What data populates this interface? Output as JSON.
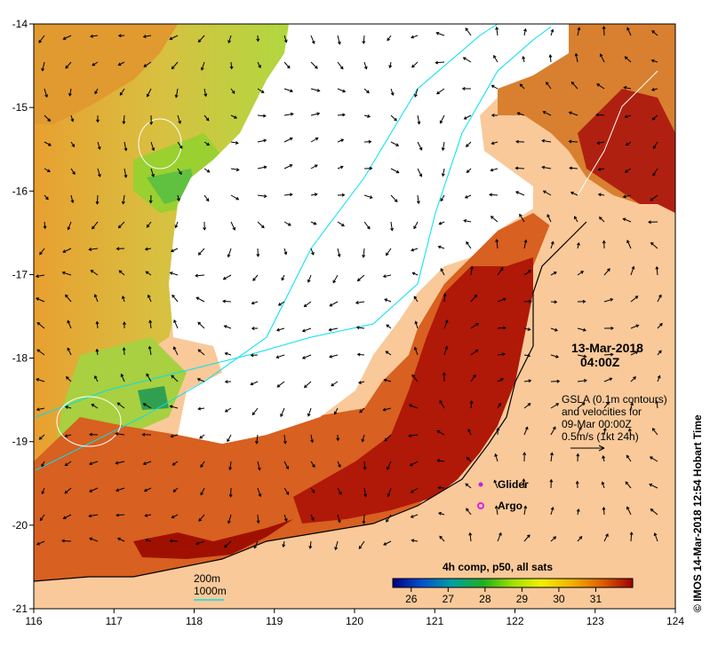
{
  "map": {
    "lon_range": [
      116,
      124
    ],
    "lat_range": [
      -21,
      -14
    ],
    "x_ticks": [
      "116",
      "117",
      "118",
      "119",
      "120",
      "121",
      "122",
      "123",
      "124"
    ],
    "y_ticks": [
      "-14",
      "-15",
      "-16",
      "-17",
      "-18",
      "-19",
      "-20",
      "-21"
    ],
    "colors": {
      "land": "#f9c99a",
      "no_data": "#ffffff",
      "contour_isobath": "#00e0f0",
      "gsla_contour": "#ffffff"
    }
  },
  "timestamp": {
    "date": "13-Mar-2018",
    "time": "04:00Z"
  },
  "info": {
    "line1": "GSLA (0.1m contours)",
    "line2": "and velocities for",
    "line3": "09-Mar 00:00Z",
    "line4": "0.5m/s (1kt 24h)"
  },
  "legend": {
    "glider": "Glider",
    "argo": "Argo",
    "glider_color": "#c020e0",
    "argo_color": "#e020e0"
  },
  "depth_legend": {
    "d200": "200m",
    "d1000": "1000m"
  },
  "colorbar": {
    "title": "4h comp, p50, all sats",
    "ticks": [
      "26",
      "27",
      "28",
      "29",
      "30",
      "31"
    ],
    "range": [
      25.5,
      32
    ]
  },
  "credit": "© IMOS 14-Mar-2018 12:54 Hobart Time"
}
